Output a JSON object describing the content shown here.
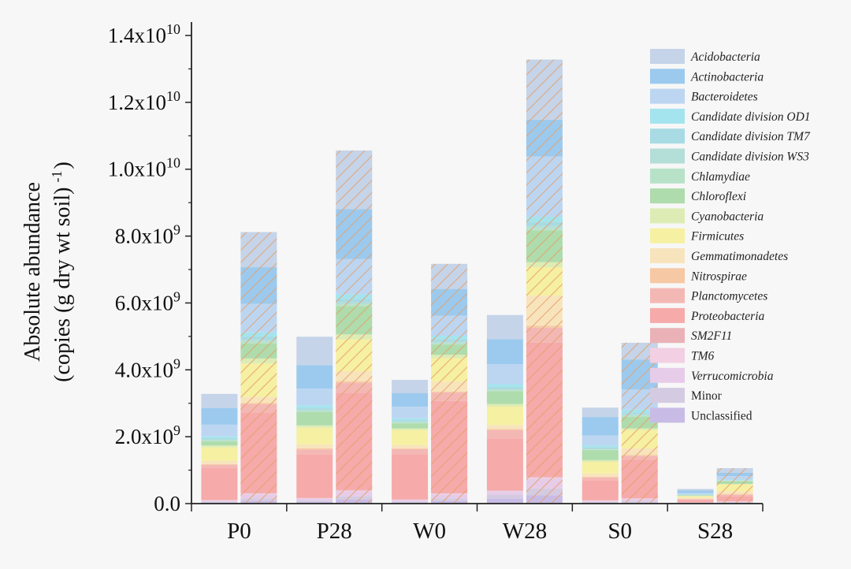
{
  "chart_data": {
    "type": "bar",
    "stacked": true,
    "ylabel_line1": "Absolute abundance",
    "ylabel_line2": "(copies (g dry wt soil)",
    "ylabel_sup": "-1",
    "ylabel_close": ")",
    "ylim": [
      0,
      15000000000.0
    ],
    "yticks": [
      {
        "value": 0,
        "base": "0.0",
        "exp": ""
      },
      {
        "value": 2000000000.0,
        "base": "2.0x10",
        "exp": "9"
      },
      {
        "value": 4000000000.0,
        "base": "4.0x10",
        "exp": "9"
      },
      {
        "value": 6000000000.0,
        "base": "6.0x10",
        "exp": "9"
      },
      {
        "value": 8000000000.0,
        "base": "8.0x10",
        "exp": "9"
      },
      {
        "value": 10000000000.0,
        "base": "1.0x10",
        "exp": "10"
      },
      {
        "value": 12000000000.0,
        "base": "1.2x10",
        "exp": "10"
      },
      {
        "value": 14000000000.0,
        "base": "1.4x10",
        "exp": "10"
      }
    ],
    "categories": [
      "P0",
      "P28",
      "W0",
      "W28",
      "S0",
      "S28"
    ],
    "bars_per_category": 2,
    "hatched_bar_index": 1,
    "legend_position": "right",
    "series": [
      {
        "name": "Acidobacteria",
        "italic": true,
        "color": "#c5d4e8",
        "values": [
          [
            420000000.0,
            1050000000.0
          ],
          [
            850000000.0,
            1750000000.0
          ],
          [
            400000000.0,
            750000000.0
          ],
          [
            720000000.0,
            1800000000.0
          ],
          [
            280000000.0,
            500000000.0
          ],
          [
            50000000.0,
            140000000.0
          ]
        ]
      },
      {
        "name": "Actinobacteria",
        "italic": true,
        "color": "#9ccaee",
        "values": [
          [
            500000000.0,
            1100000000.0
          ],
          [
            700000000.0,
            1500000000.0
          ],
          [
            400000000.0,
            800000000.0
          ],
          [
            750000000.0,
            1100000000.0
          ],
          [
            550000000.0,
            900000000.0
          ],
          [
            70000000.0,
            100000000.0
          ]
        ]
      },
      {
        "name": "Bacteroidetes",
        "italic": true,
        "color": "#bcd6f2",
        "values": [
          [
            350000000.0,
            850000000.0
          ],
          [
            500000000.0,
            1050000000.0
          ],
          [
            350000000.0,
            600000000.0
          ],
          [
            600000000.0,
            1800000000.0
          ],
          [
            300000000.0,
            600000000.0
          ],
          [
            40000000.0,
            100000000.0
          ]
        ]
      },
      {
        "name": "Candidate division OD1",
        "italic": true,
        "color": "#a4e4ee",
        "values": [
          [
            50000000.0,
            120000000.0
          ],
          [
            70000000.0,
            140000000.0
          ],
          [
            50000000.0,
            100000000.0
          ],
          [
            80000000.0,
            150000000.0
          ],
          [
            50000000.0,
            80000000.0
          ],
          [
            10000000.0,
            20000000.0
          ]
        ]
      },
      {
        "name": "Candidate division TM7",
        "italic": true,
        "color": "#a8dbe3",
        "values": [
          [
            40000000.0,
            100000000.0
          ],
          [
            60000000.0,
            100000000.0
          ],
          [
            40000000.0,
            80000000.0
          ],
          [
            50000000.0,
            120000000.0
          ],
          [
            40000000.0,
            60000000.0
          ],
          [
            10000000.0,
            10000000.0
          ]
        ]
      },
      {
        "name": "Candidate division WS3",
        "italic": true,
        "color": "#b4ded8",
        "values": [
          [
            30000000.0,
            60000000.0
          ],
          [
            40000000.0,
            60000000.0
          ],
          [
            30000000.0,
            50000000.0
          ],
          [
            50000000.0,
            80000000.0
          ],
          [
            30000000.0,
            40000000.0
          ],
          [
            5000000.0,
            10000000.0
          ]
        ]
      },
      {
        "name": "Chlamydiae",
        "italic": true,
        "color": "#b8e2c8",
        "values": [
          [
            30000000.0,
            50000000.0
          ],
          [
            30000000.0,
            50000000.0
          ],
          [
            30000000.0,
            40000000.0
          ],
          [
            30000000.0,
            60000000.0
          ],
          [
            20000000.0,
            30000000.0
          ],
          [
            5000000.0,
            10000000.0
          ]
        ]
      },
      {
        "name": "Chloroflexi",
        "italic": true,
        "color": "#aedcac",
        "values": [
          [
            120000000.0,
            450000000.0
          ],
          [
            400000000.0,
            850000000.0
          ],
          [
            150000000.0,
            300000000.0
          ],
          [
            380000000.0,
            950000000.0
          ],
          [
            300000000.0,
            350000000.0
          ],
          [
            20000000.0,
            80000000.0
          ]
        ]
      },
      {
        "name": "Cyanobacteria",
        "italic": true,
        "color": "#dcecb4",
        "values": [
          [
            60000000.0,
            150000000.0
          ],
          [
            70000000.0,
            150000000.0
          ],
          [
            50000000.0,
            100000000.0
          ],
          [
            80000000.0,
            150000000.0
          ],
          [
            50000000.0,
            50000000.0
          ],
          [
            10000000.0,
            20000000.0
          ]
        ]
      },
      {
        "name": "Firmicutes",
        "italic": true,
        "color": "#f6f0a2",
        "values": [
          [
            400000000.0,
            1000000000.0
          ],
          [
            500000000.0,
            950000000.0
          ],
          [
            450000000.0,
            700000000.0
          ],
          [
            550000000.0,
            850000000.0
          ],
          [
            350000000.0,
            550000000.0
          ],
          [
            40000000.0,
            200000000.0
          ]
        ]
      },
      {
        "name": "Gemmatimonadetes",
        "italic": true,
        "color": "#f8e4bc",
        "values": [
          [
            100000000.0,
            180000000.0
          ],
          [
            120000000.0,
            300000000.0
          ],
          [
            100000000.0,
            300000000.0
          ],
          [
            120000000.0,
            900000000.0
          ],
          [
            100000000.0,
            200000000.0
          ],
          [
            40000000.0,
            90000000.0
          ]
        ]
      },
      {
        "name": "Nitrospirae",
        "italic": true,
        "color": "#f6c8a4",
        "values": [
          [
            20000000.0,
            40000000.0
          ],
          [
            30000000.0,
            50000000.0
          ],
          [
            20000000.0,
            30000000.0
          ],
          [
            30000000.0,
            60000000.0
          ],
          [
            20000000.0,
            20000000.0
          ],
          [
            5000000.0,
            10000000.0
          ]
        ]
      },
      {
        "name": "Planctomycetes",
        "italic": true,
        "color": "#f4b8b4",
        "values": [
          [
            100000000.0,
            250000000.0
          ],
          [
            150000000.0,
            300000000.0
          ],
          [
            150000000.0,
            250000000.0
          ],
          [
            250000000.0,
            450000000.0
          ],
          [
            80000000.0,
            120000000.0
          ],
          [
            20000000.0,
            50000000.0
          ]
        ]
      },
      {
        "name": "Proteobacteria",
        "italic": true,
        "color": "#f6aaaa",
        "values": [
          [
            950000000.0,
            2400000000.0
          ],
          [
            1300000000.0,
            2900000000.0
          ],
          [
            1350000000.0,
            2750000000.0
          ],
          [
            1550000000.0,
            4000000000.0
          ],
          [
            600000000.0,
            1150000000.0
          ],
          [
            80000000.0,
            150000000.0
          ]
        ]
      },
      {
        "name": "SM2F11",
        "italic": true,
        "color": "#eab2b6",
        "values": [
          [
            10000000.0,
            20000000.0
          ],
          [
            10000000.0,
            20000000.0
          ],
          [
            10000000.0,
            20000000.0
          ],
          [
            20000000.0,
            30000000.0
          ],
          [
            10000000.0,
            10000000.0
          ],
          [
            2000000.0,
            5000000.0
          ]
        ]
      },
      {
        "name": "TM6",
        "italic": true,
        "color": "#f2cfe2",
        "values": [
          [
            10000000.0,
            20000000.0
          ],
          [
            10000000.0,
            20000000.0
          ],
          [
            10000000.0,
            20000000.0
          ],
          [
            10000000.0,
            30000000.0
          ],
          [
            10000000.0,
            10000000.0
          ],
          [
            2000000.0,
            5000000.0
          ]
        ]
      },
      {
        "name": "Verrucomicrobia",
        "italic": true,
        "color": "#e6cce8",
        "values": [
          [
            30000000.0,
            120000000.0
          ],
          [
            50000000.0,
            150000000.0
          ],
          [
            50000000.0,
            120000000.0
          ],
          [
            100000000.0,
            300000000.0
          ],
          [
            30000000.0,
            60000000.0
          ],
          [
            10000000.0,
            20000000.0
          ]
        ]
      },
      {
        "name": "Minor",
        "italic": false,
        "color": "#d4cbe2",
        "values": [
          [
            30000000.0,
            80000000.0
          ],
          [
            50000000.0,
            100000000.0
          ],
          [
            30000000.0,
            80000000.0
          ],
          [
            120000000.0,
            200000000.0
          ],
          [
            30000000.0,
            50000000.0
          ],
          [
            10000000.0,
            20000000.0
          ]
        ]
      },
      {
        "name": "Unclassified",
        "italic": false,
        "color": "#c8bce6",
        "values": [
          [
            30000000.0,
            80000000.0
          ],
          [
            50000000.0,
            120000000.0
          ],
          [
            30000000.0,
            80000000.0
          ],
          [
            150000000.0,
            250000000.0
          ],
          [
            20000000.0,
            30000000.0
          ],
          [
            10000000.0,
            20000000.0
          ]
        ]
      }
    ]
  }
}
